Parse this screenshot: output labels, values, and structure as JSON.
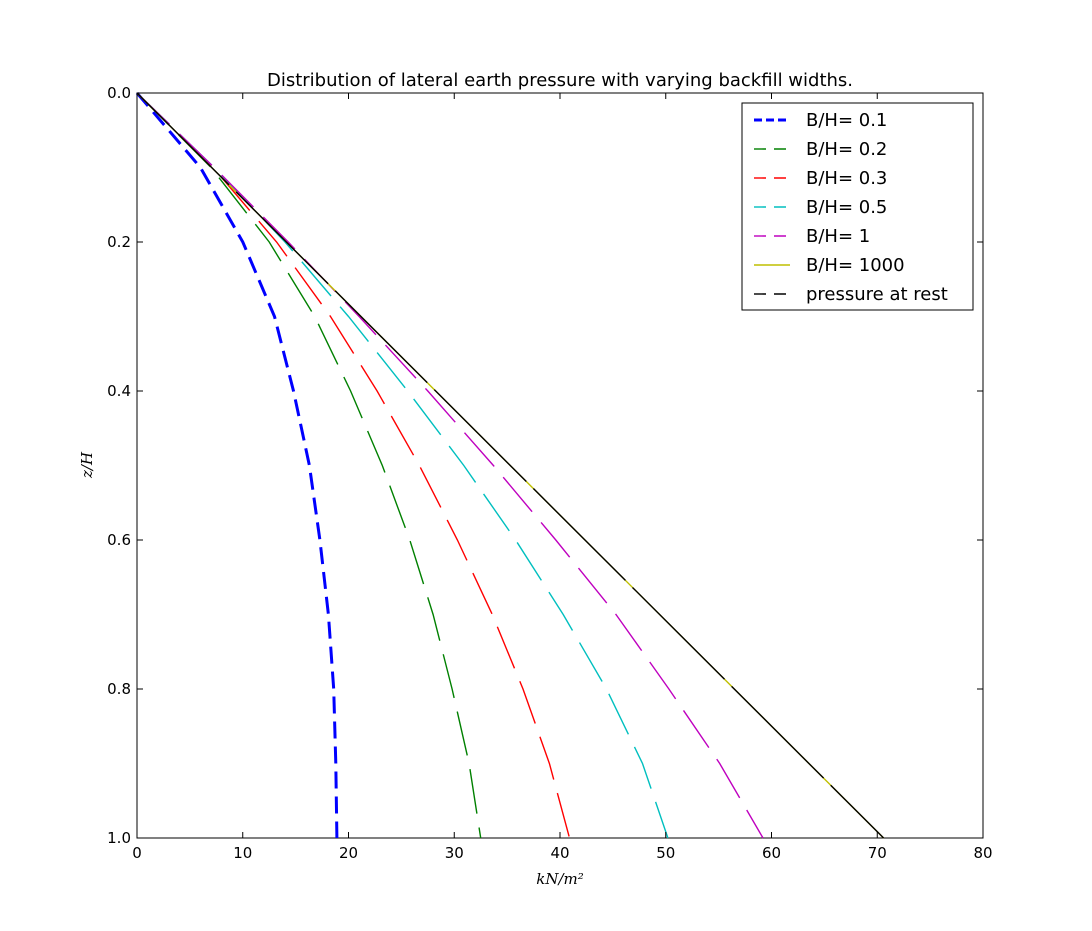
{
  "chart_data": {
    "type": "line",
    "title": "Distribution of lateral earth pressure with varying backfill widths.",
    "xlabel": "kN/m²",
    "ylabel": "z/H",
    "xlim": [
      0,
      80
    ],
    "ylim": [
      1.0,
      0.0
    ],
    "y_inverted": true,
    "x_ticks": [
      "0",
      "10",
      "20",
      "30",
      "40",
      "50",
      "60",
      "70",
      "80"
    ],
    "y_ticks": [
      "0.0",
      "0.2",
      "0.4",
      "0.6",
      "0.8",
      "1.0"
    ],
    "grid": false,
    "legend_position": "top-right",
    "series": [
      {
        "name": "B/H= 0.1",
        "color": "#0000ff",
        "style": "dashed-thick",
        "points": [
          [
            0,
            0
          ],
          [
            6,
            0.1
          ],
          [
            10,
            0.2
          ],
          [
            13,
            0.3
          ],
          [
            14.8,
            0.4
          ],
          [
            16.3,
            0.5
          ],
          [
            17.3,
            0.6
          ],
          [
            18.1,
            0.7
          ],
          [
            18.6,
            0.8
          ],
          [
            18.8,
            0.9
          ],
          [
            18.9,
            1.0
          ]
        ]
      },
      {
        "name": "B/H= 0.2",
        "color": "#008000",
        "style": "dashed",
        "points": [
          [
            0,
            0
          ],
          [
            7,
            0.1
          ],
          [
            12.5,
            0.2
          ],
          [
            16.8,
            0.3
          ],
          [
            20.2,
            0.4
          ],
          [
            23.2,
            0.5
          ],
          [
            25.8,
            0.6
          ],
          [
            28,
            0.7
          ],
          [
            29.8,
            0.8
          ],
          [
            31.4,
            0.9
          ],
          [
            32.5,
            1.0
          ]
        ]
      },
      {
        "name": "B/H= 0.3",
        "color": "#ff0000",
        "style": "dashed",
        "points": [
          [
            0,
            0
          ],
          [
            7.2,
            0.1
          ],
          [
            13.2,
            0.2
          ],
          [
            18.3,
            0.3
          ],
          [
            22.7,
            0.4
          ],
          [
            26.7,
            0.5
          ],
          [
            30.3,
            0.6
          ],
          [
            33.6,
            0.7
          ],
          [
            36.5,
            0.8
          ],
          [
            39,
            0.9
          ],
          [
            40.9,
            1.0
          ]
        ]
      },
      {
        "name": "B/H= 0.5",
        "color": "#00bfbf",
        "style": "dashed",
        "points": [
          [
            0,
            0
          ],
          [
            7.3,
            0.1
          ],
          [
            14,
            0.2
          ],
          [
            20,
            0.3
          ],
          [
            25.6,
            0.4
          ],
          [
            30.9,
            0.5
          ],
          [
            35.8,
            0.6
          ],
          [
            40.3,
            0.7
          ],
          [
            44.4,
            0.8
          ],
          [
            47.8,
            0.9
          ],
          [
            50.2,
            1.0
          ]
        ]
      },
      {
        "name": "B/H= 1",
        "color": "#bf00bf",
        "style": "dashed",
        "points": [
          [
            0,
            0
          ],
          [
            7.3,
            0.1
          ],
          [
            14.3,
            0.2
          ],
          [
            21,
            0.3
          ],
          [
            27.5,
            0.4
          ],
          [
            33.7,
            0.5
          ],
          [
            39.6,
            0.6
          ],
          [
            45.3,
            0.7
          ],
          [
            50.3,
            0.8
          ],
          [
            55.1,
            0.9
          ],
          [
            59.2,
            1.0
          ]
        ]
      },
      {
        "name": "B/H= 1000",
        "color": "#bfbf00",
        "style": "solid",
        "points": [
          [
            0,
            0
          ],
          [
            70.6,
            1.0
          ]
        ]
      },
      {
        "name": "pressure at rest",
        "color": "#000000",
        "style": "dashed-long",
        "points": [
          [
            0,
            0
          ],
          [
            70.6,
            1.0
          ]
        ]
      }
    ]
  }
}
